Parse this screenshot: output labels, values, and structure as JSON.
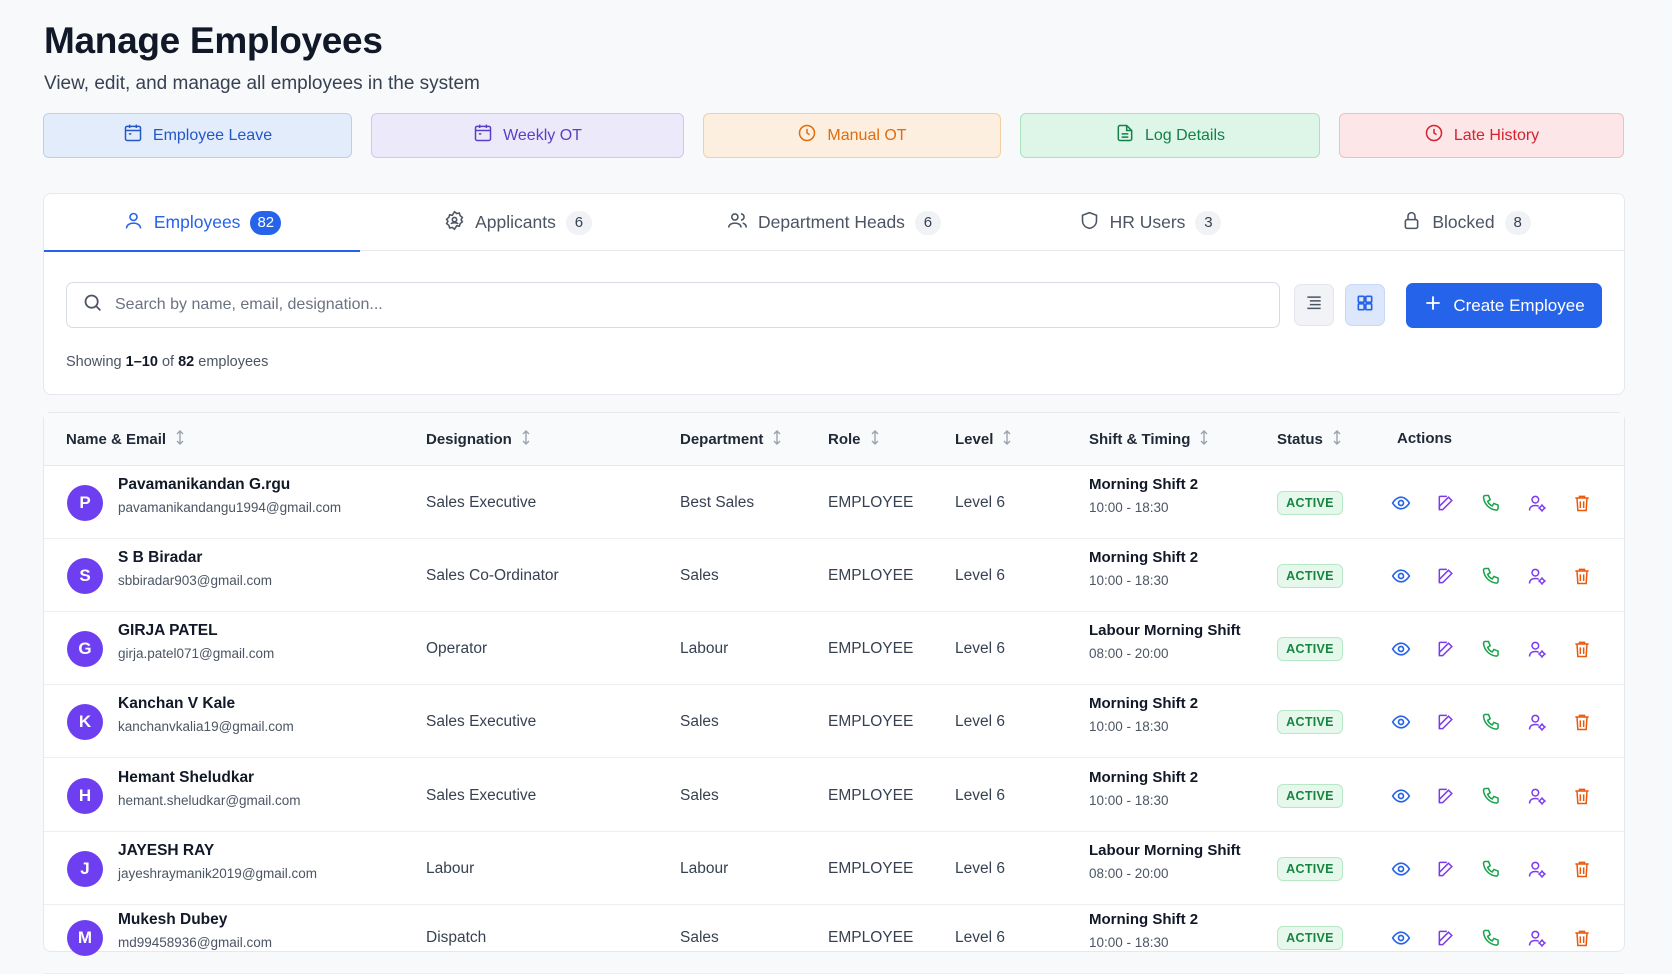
{
  "header": {
    "title": "Manage Employees",
    "subtitle": "View, edit, and manage all employees in the system"
  },
  "quick_links": [
    {
      "label": "Employee Leave",
      "icon": "calendar-icon",
      "color": "#2457c7"
    },
    {
      "label": "Weekly OT",
      "icon": "calendar-icon",
      "color": "#5b3fc4"
    },
    {
      "label": "Manual OT",
      "icon": "clock-icon",
      "color": "#e06c0f"
    },
    {
      "label": "Log Details",
      "icon": "document-icon",
      "color": "#14804a"
    },
    {
      "label": "Late History",
      "icon": "clock-icon",
      "color": "#d4222e"
    }
  ],
  "tabs": [
    {
      "label": "Employees",
      "count": "82",
      "icon": "user-icon",
      "active": true
    },
    {
      "label": "Applicants",
      "count": "6",
      "icon": "badge-icon",
      "active": false
    },
    {
      "label": "Department Heads",
      "count": "6",
      "icon": "users-icon",
      "active": false
    },
    {
      "label": "HR Users",
      "count": "3",
      "icon": "shield-icon",
      "active": false
    },
    {
      "label": "Blocked",
      "count": "8",
      "icon": "lock-icon",
      "active": false
    }
  ],
  "search": {
    "placeholder": "Search by name, email, designation..."
  },
  "create_button": {
    "label": "Create Employee"
  },
  "showing": {
    "prefix": "Showing",
    "range": "1–10",
    "of": "of",
    "total": "82",
    "suffix": "employees"
  },
  "table": {
    "columns": [
      "Name & Email",
      "Designation",
      "Department",
      "Role",
      "Level",
      "Shift & Timing",
      "Status",
      "Actions"
    ],
    "rows": [
      {
        "initial": "P",
        "name": "Pavamanikandan G.rgu",
        "email": "pavamanikandangu1994@gmail.com",
        "designation": "Sales Executive",
        "department": "Best Sales",
        "role": "EMPLOYEE",
        "level": "Level 6",
        "shift": "Morning Shift 2",
        "timing": "10:00 - 18:30",
        "status": "ACTIVE"
      },
      {
        "initial": "S",
        "name": "S B Biradar",
        "email": "sbbiradar903@gmail.com",
        "designation": "Sales Co-Ordinator",
        "department": "Sales",
        "role": "EMPLOYEE",
        "level": "Level 6",
        "shift": "Morning Shift 2",
        "timing": "10:00 - 18:30",
        "status": "ACTIVE"
      },
      {
        "initial": "G",
        "name": "GIRJA PATEL",
        "email": "girja.patel071@gmail.com",
        "designation": "Operator",
        "department": "Labour",
        "role": "EMPLOYEE",
        "level": "Level 6",
        "shift": "Labour Morning Shift",
        "timing": "08:00 - 20:00",
        "status": "ACTIVE"
      },
      {
        "initial": "K",
        "name": "Kanchan V Kale",
        "email": "kanchanvkalia19@gmail.com",
        "designation": "Sales Executive",
        "department": "Sales",
        "role": "EMPLOYEE",
        "level": "Level 6",
        "shift": "Morning Shift 2",
        "timing": "10:00 - 18:30",
        "status": "ACTIVE"
      },
      {
        "initial": "H",
        "name": "Hemant Sheludkar",
        "email": "hemant.sheludkar@gmail.com",
        "designation": "Sales Executive",
        "department": "Sales",
        "role": "EMPLOYEE",
        "level": "Level 6",
        "shift": "Morning Shift 2",
        "timing": "10:00 - 18:30",
        "status": "ACTIVE"
      },
      {
        "initial": "J",
        "name": "JAYESH RAY",
        "email": "jayeshraymanik2019@gmail.com",
        "designation": "Labour",
        "department": "Labour",
        "role": "EMPLOYEE",
        "level": "Level 6",
        "shift": "Labour Morning Shift",
        "timing": "08:00 - 20:00",
        "status": "ACTIVE"
      },
      {
        "initial": "M",
        "name": "Mukesh Dubey",
        "email": "md99458936@gmail.com",
        "designation": "Dispatch",
        "department": "Sales",
        "role": "EMPLOYEE",
        "level": "Level 6",
        "shift": "Morning Shift 2",
        "timing": "10:00 - 18:30",
        "status": "ACTIVE"
      }
    ],
    "actions": [
      "view-icon",
      "edit-icon",
      "phone-icon",
      "user-manage-icon",
      "delete-icon"
    ]
  },
  "colors": {
    "primary": "#2563eb",
    "avatar": "#6d3ff0",
    "status_active": "#17843f",
    "action_view": "#2563eb",
    "action_edit": "#7c3aed",
    "action_phone": "#16a34a",
    "action_user": "#7c3aed",
    "action_delete": "#ea580c"
  }
}
